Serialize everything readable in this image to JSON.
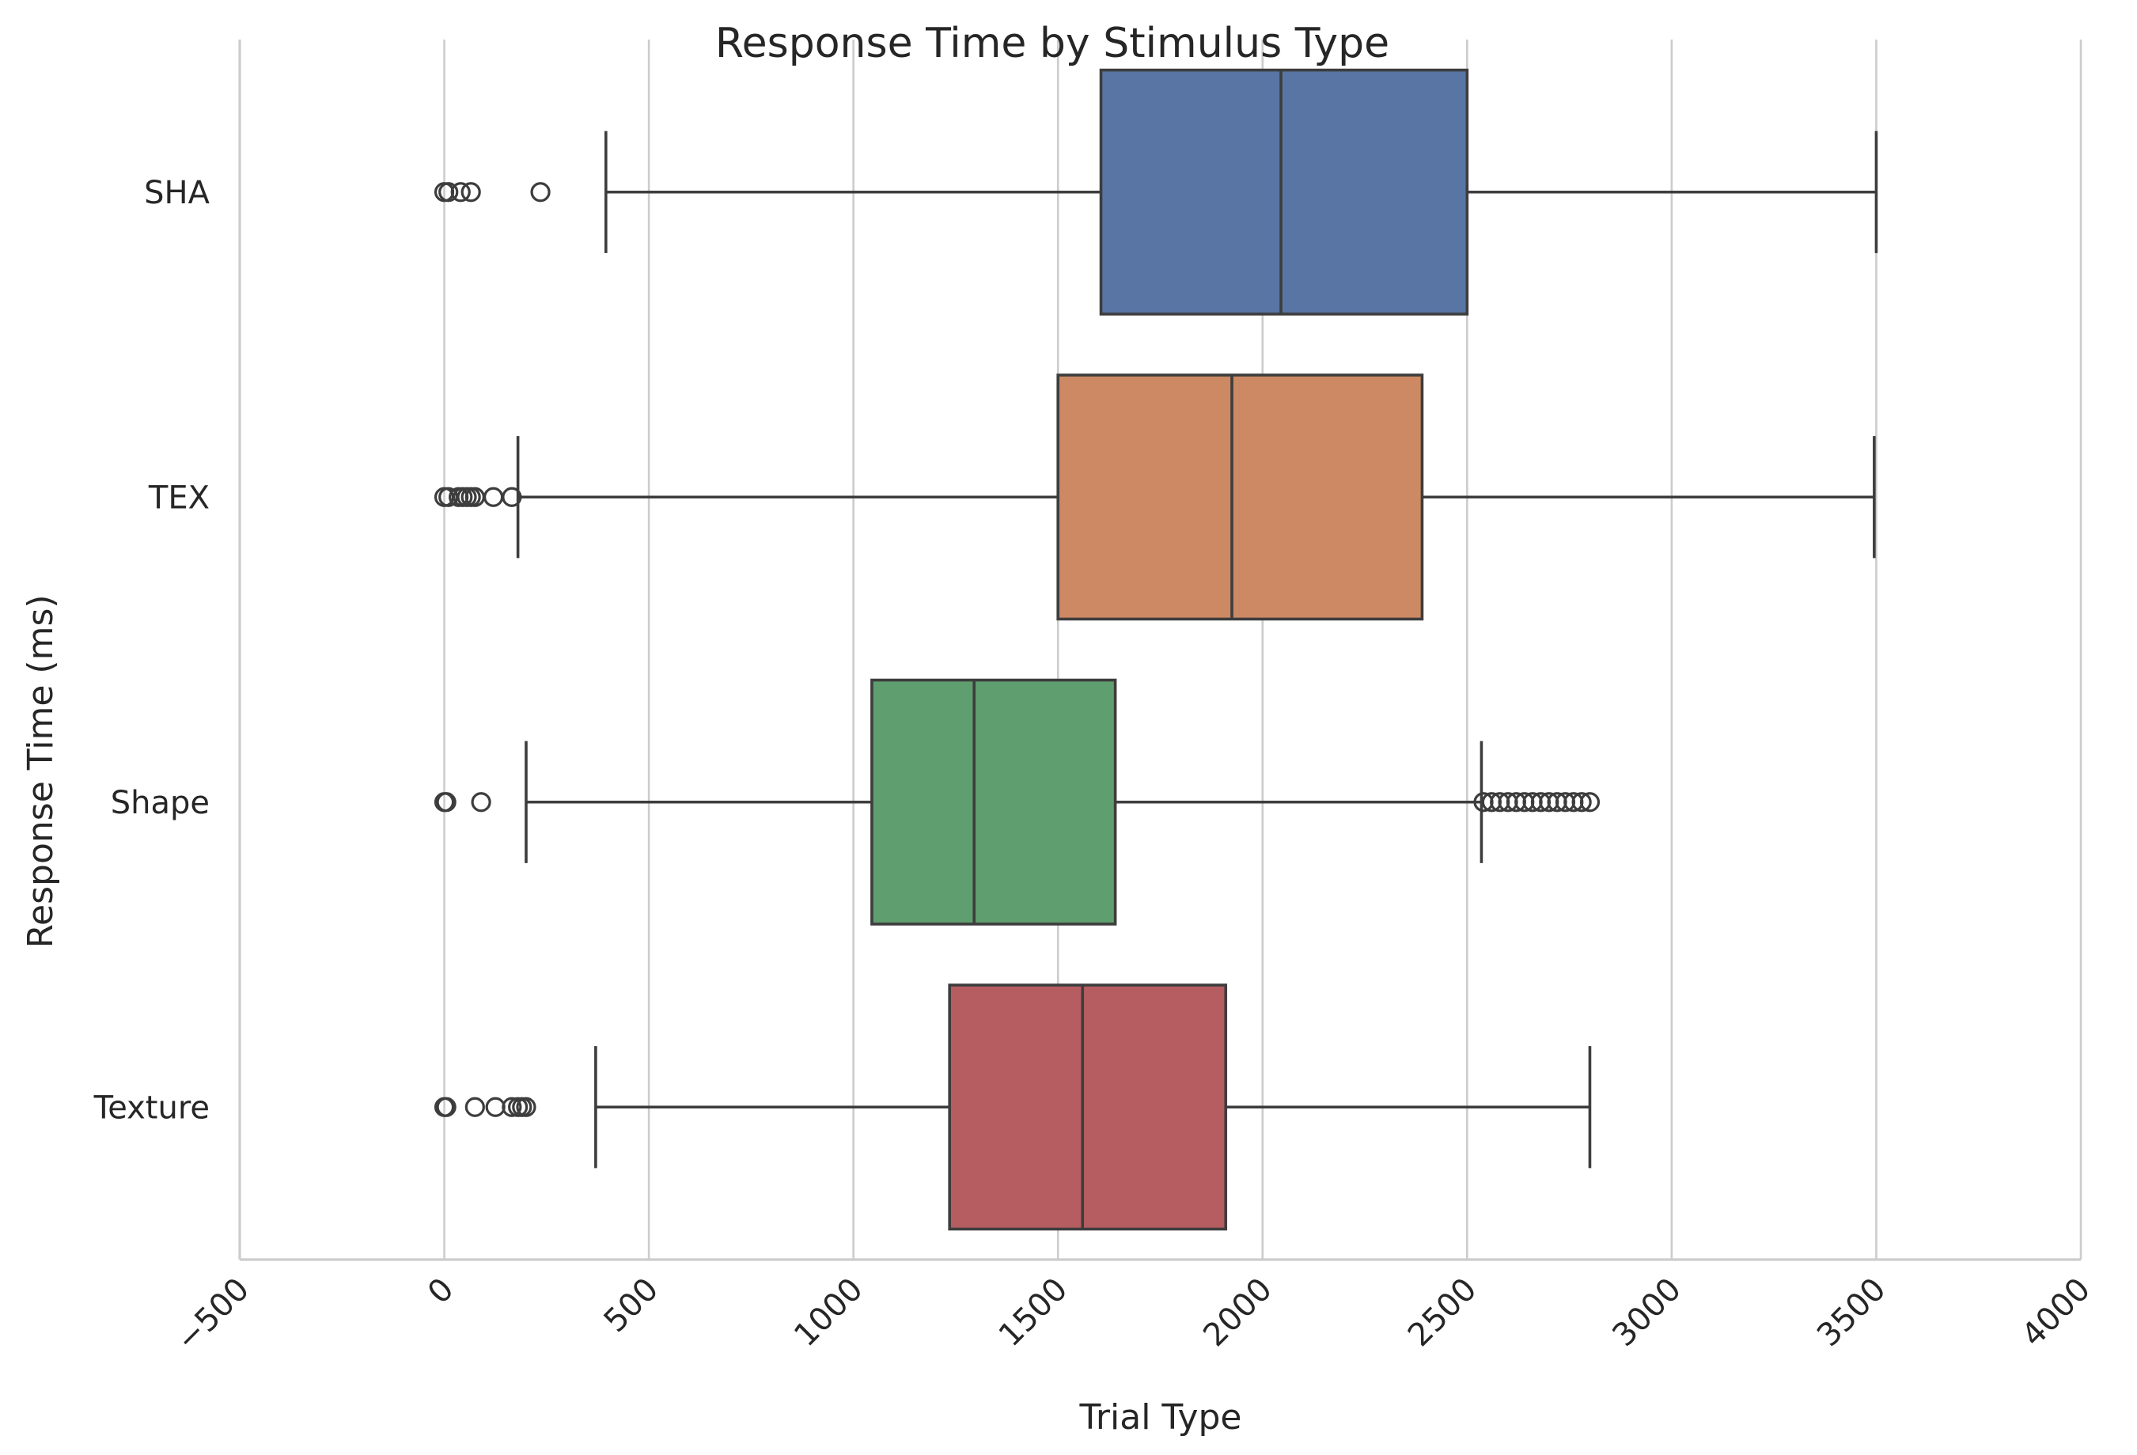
{
  "chart_data": {
    "type": "box",
    "orientation": "horizontal",
    "title": "Response Time by Stimulus Type",
    "xlabel": "Trial Type",
    "ylabel": "Response Time (ms)",
    "xlim": [
      -500,
      4000
    ],
    "xticks": [
      -500,
      0,
      500,
      1000,
      1500,
      2000,
      2500,
      3000,
      3500,
      4000
    ],
    "xtick_labels": [
      "−500",
      "0",
      "500",
      "1000",
      "1500",
      "2000",
      "2500",
      "3000",
      "3500",
      "4000"
    ],
    "grid": "vertical",
    "categories": [
      "SHA",
      "TEX",
      "Shape",
      "Texture"
    ],
    "colors": [
      "#5875a4",
      "#cc8963",
      "#5f9e6e",
      "#b55d60"
    ],
    "series": [
      {
        "category": "SHA",
        "whisker_low": 395,
        "q1": 1605,
        "median": 2045,
        "q3": 2500,
        "whisker_high": 3500,
        "outliers": [
          0,
          10,
          40,
          65,
          235
        ]
      },
      {
        "category": "TEX",
        "whisker_low": 180,
        "q1": 1500,
        "median": 1925,
        "q3": 2390,
        "whisker_high": 3495,
        "outliers": [
          0,
          10,
          35,
          45,
          55,
          65,
          75,
          120,
          165
        ]
      },
      {
        "category": "Shape",
        "whisker_low": 200,
        "q1": 1045,
        "median": 1295,
        "q3": 1640,
        "whisker_high": 2535,
        "outliers": [
          0,
          5,
          90,
          2540,
          2560,
          2580,
          2600,
          2620,
          2640,
          2660,
          2680,
          2700,
          2720,
          2740,
          2760,
          2780,
          2800
        ]
      },
      {
        "category": "Texture",
        "whisker_low": 370,
        "q1": 1235,
        "median": 1560,
        "q3": 1910,
        "whisker_high": 2800,
        "outliers": [
          0,
          5,
          75,
          125,
          165,
          180,
          190,
          200
        ]
      }
    ]
  }
}
